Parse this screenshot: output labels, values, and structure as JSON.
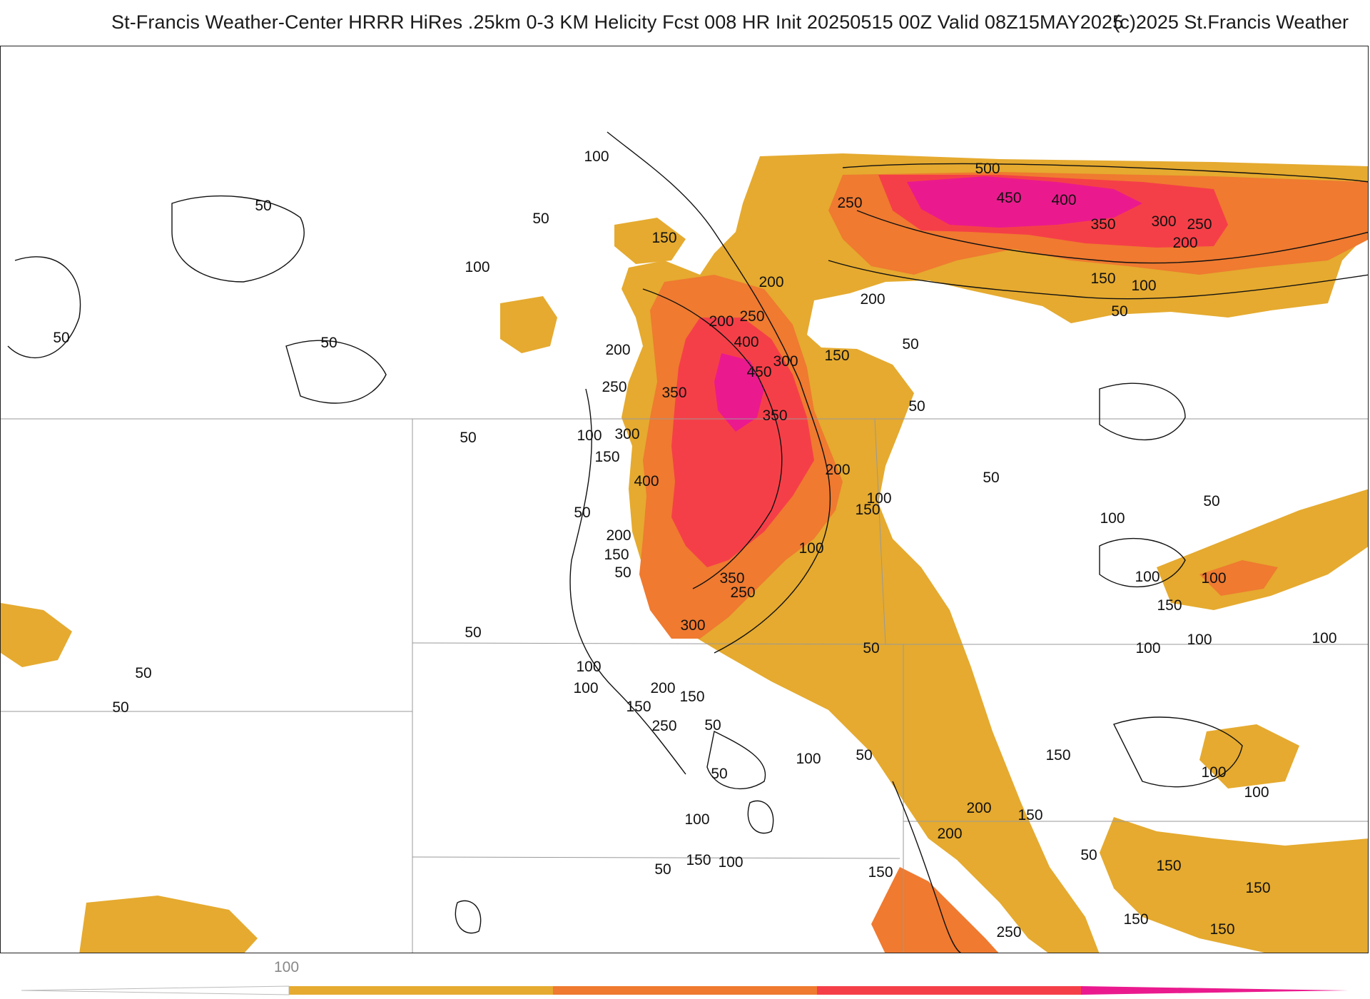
{
  "header": {
    "title": "St-Francis Weather-Center HRRR HiRes .25km 0-3 KM Helicity Fcst 008 HR Init 20250515 00Z  Valid 08Z15MAY2025",
    "copyright": "(c)2025 St.Francis Weather"
  },
  "colors": {
    "band_100_150": "#e5aa2f",
    "band_150_250": "#ef7a30",
    "band_250_400": "#f53f48",
    "band_400_plus": "#ea1a8e",
    "contour": "#111111",
    "boundary": "#999999"
  },
  "legend": {
    "tick_label": "100"
  },
  "contour_labels": [
    {
      "text": "100"
    },
    {
      "text": "50"
    },
    {
      "text": "50"
    },
    {
      "text": "150"
    },
    {
      "text": "100"
    },
    {
      "text": "50"
    },
    {
      "text": "50"
    },
    {
      "text": "200"
    },
    {
      "text": "250"
    },
    {
      "text": "350"
    },
    {
      "text": "100"
    },
    {
      "text": "300"
    },
    {
      "text": "50"
    },
    {
      "text": "150"
    },
    {
      "text": "400"
    },
    {
      "text": "50"
    },
    {
      "text": "200"
    },
    {
      "text": "150"
    },
    {
      "text": "50"
    },
    {
      "text": "350"
    },
    {
      "text": "250"
    },
    {
      "text": "300"
    },
    {
      "text": "100"
    },
    {
      "text": "50"
    },
    {
      "text": "50"
    },
    {
      "text": "100"
    },
    {
      "text": "200"
    },
    {
      "text": "150"
    },
    {
      "text": "150"
    },
    {
      "text": "250"
    },
    {
      "text": "50"
    },
    {
      "text": "50"
    },
    {
      "text": "100"
    },
    {
      "text": "50"
    },
    {
      "text": "100"
    },
    {
      "text": "50"
    },
    {
      "text": "150"
    },
    {
      "text": "100"
    },
    {
      "text": "50"
    },
    {
      "text": "200"
    },
    {
      "text": "400"
    },
    {
      "text": "450"
    },
    {
      "text": "300"
    },
    {
      "text": "250"
    },
    {
      "text": "200"
    },
    {
      "text": "350"
    },
    {
      "text": "200"
    },
    {
      "text": "100"
    },
    {
      "text": "150"
    },
    {
      "text": "100"
    },
    {
      "text": "50"
    },
    {
      "text": "500"
    },
    {
      "text": "450"
    },
    {
      "text": "400"
    },
    {
      "text": "250"
    },
    {
      "text": "350"
    },
    {
      "text": "300"
    },
    {
      "text": "250"
    },
    {
      "text": "200"
    },
    {
      "text": "150"
    },
    {
      "text": "100"
    },
    {
      "text": "50"
    },
    {
      "text": "150"
    },
    {
      "text": "50"
    },
    {
      "text": "200"
    },
    {
      "text": "100"
    },
    {
      "text": "50"
    },
    {
      "text": "50"
    },
    {
      "text": "50"
    },
    {
      "text": "100"
    },
    {
      "text": "100"
    },
    {
      "text": "150"
    },
    {
      "text": "100"
    },
    {
      "text": "100"
    },
    {
      "text": "100"
    },
    {
      "text": "150"
    },
    {
      "text": "100"
    },
    {
      "text": "100"
    },
    {
      "text": "50"
    },
    {
      "text": "150"
    },
    {
      "text": "200"
    },
    {
      "text": "150"
    },
    {
      "text": "200"
    },
    {
      "text": "150"
    },
    {
      "text": "250"
    },
    {
      "text": "150"
    },
    {
      "text": "150"
    },
    {
      "text": "150"
    }
  ]
}
